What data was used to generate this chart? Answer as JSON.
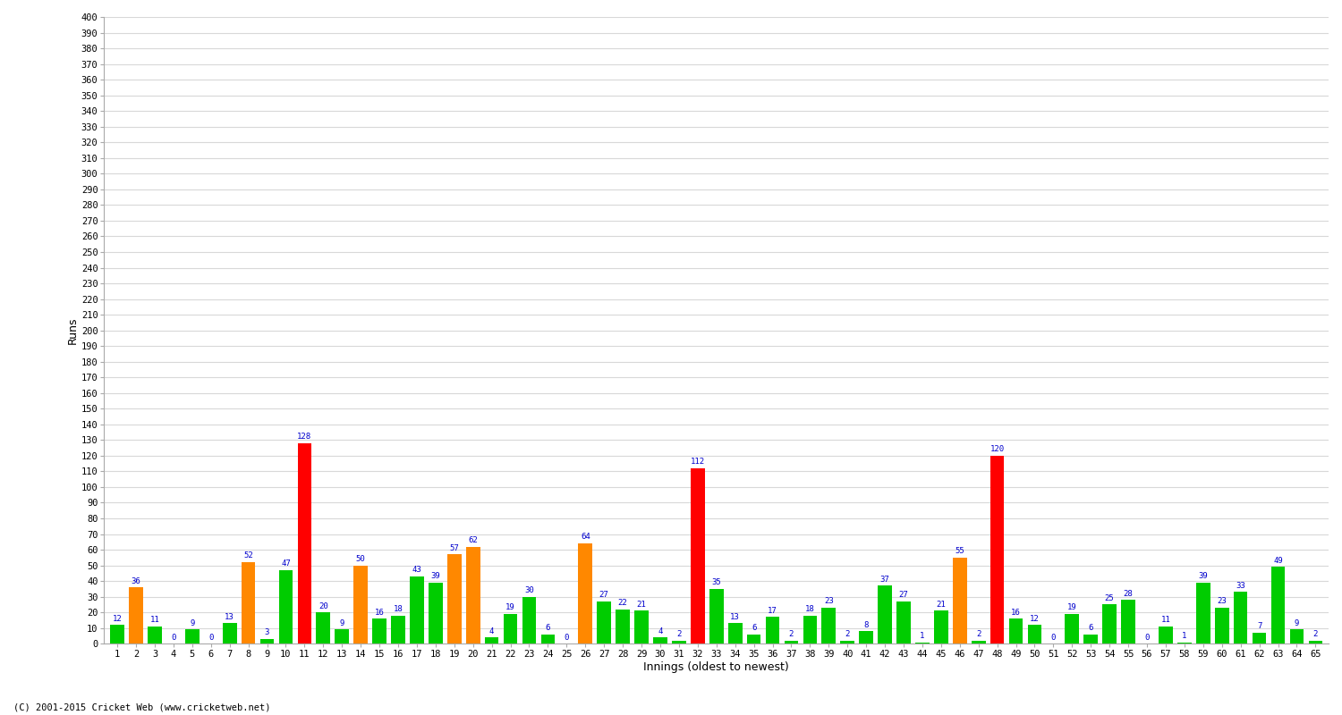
{
  "innings": [
    1,
    2,
    3,
    4,
    5,
    6,
    7,
    8,
    9,
    10,
    11,
    12,
    13,
    14,
    15,
    16,
    17,
    18,
    19,
    20,
    21,
    22,
    23,
    24,
    25,
    26,
    27,
    28,
    29,
    30,
    31,
    32,
    33,
    34,
    35,
    36,
    37,
    38,
    39,
    40,
    41,
    42,
    43,
    44,
    45,
    46,
    47,
    48,
    49,
    50,
    51,
    52,
    53,
    54,
    55,
    56,
    57,
    58,
    59,
    60,
    61,
    62,
    63,
    64,
    65
  ],
  "scores": [
    12,
    36,
    11,
    0,
    9,
    0,
    13,
    52,
    3,
    47,
    128,
    20,
    9,
    50,
    16,
    18,
    43,
    39,
    57,
    62,
    4,
    19,
    30,
    6,
    0,
    64,
    27,
    22,
    21,
    4,
    2,
    112,
    35,
    13,
    6,
    17,
    2,
    18,
    23,
    2,
    8,
    37,
    27,
    1,
    21,
    55,
    2,
    120,
    16,
    12,
    0,
    19,
    6,
    25,
    28,
    0,
    11,
    1,
    39,
    23,
    33,
    7,
    49,
    9,
    2
  ],
  "colors": [
    "#00cc00",
    "#ff8800",
    "#00cc00",
    "#00cc00",
    "#00cc00",
    "#00cc00",
    "#00cc00",
    "#ff8800",
    "#00cc00",
    "#00cc00",
    "#ff0000",
    "#00cc00",
    "#00cc00",
    "#ff8800",
    "#00cc00",
    "#00cc00",
    "#00cc00",
    "#00cc00",
    "#ff8800",
    "#ff8800",
    "#00cc00",
    "#00cc00",
    "#00cc00",
    "#00cc00",
    "#00cc00",
    "#ff8800",
    "#00cc00",
    "#00cc00",
    "#00cc00",
    "#00cc00",
    "#00cc00",
    "#ff0000",
    "#00cc00",
    "#00cc00",
    "#00cc00",
    "#00cc00",
    "#00cc00",
    "#00cc00",
    "#00cc00",
    "#00cc00",
    "#00cc00",
    "#00cc00",
    "#00cc00",
    "#00cc00",
    "#00cc00",
    "#ff8800",
    "#00cc00",
    "#ff0000",
    "#00cc00",
    "#00cc00",
    "#00cc00",
    "#00cc00",
    "#00cc00",
    "#00cc00",
    "#00cc00",
    "#00cc00",
    "#00cc00",
    "#00cc00",
    "#00cc00",
    "#00cc00",
    "#00cc00",
    "#00cc00",
    "#00cc00",
    "#00cc00",
    "#00cc00"
  ],
  "ylabel": "Runs",
  "xlabel": "Innings (oldest to newest)",
  "ylim": [
    0,
    400
  ],
  "yticks": [
    0,
    10,
    20,
    30,
    40,
    50,
    60,
    70,
    80,
    90,
    100,
    110,
    120,
    130,
    140,
    150,
    160,
    170,
    180,
    190,
    200,
    210,
    220,
    230,
    240,
    250,
    260,
    270,
    280,
    290,
    300,
    310,
    320,
    330,
    340,
    350,
    360,
    370,
    380,
    390,
    400
  ],
  "background_color": "#ffffff",
  "grid_color": "#d8d8d8",
  "text_color": "#0000cc",
  "copyright": "(C) 2001-2015 Cricket Web (www.cricketweb.net)"
}
